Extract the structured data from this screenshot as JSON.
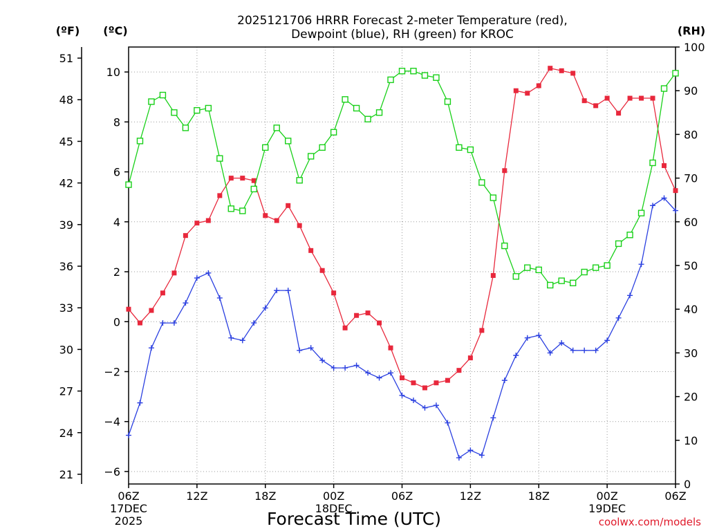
{
  "chart_data": {
    "type": "line",
    "title": [
      "2025121706 HRRR Forecast 2-meter Temperature (red),",
      "Dewpoint (blue), RH (green) for KROC"
    ],
    "xlabel": "Forecast Time (UTC)",
    "credit": "coolwx.com/models",
    "units": {
      "fahrenheit": "(ºF)",
      "celsius": "(ºC)",
      "rh": "(RH)"
    },
    "x_hours": [
      0,
      1,
      2,
      3,
      4,
      5,
      6,
      7,
      8,
      9,
      10,
      11,
      12,
      13,
      14,
      15,
      16,
      17,
      18,
      19,
      20,
      21,
      22,
      23,
      24,
      25,
      26,
      27,
      28,
      29,
      30,
      31,
      32,
      33,
      34,
      35,
      36,
      37,
      38,
      39,
      40,
      41,
      42,
      43,
      44,
      45,
      46,
      47,
      48
    ],
    "x_range": [
      0,
      48
    ],
    "x_ticks": [
      {
        "hour": 0,
        "lines": [
          "06Z",
          "17DEC",
          "2025"
        ]
      },
      {
        "hour": 6,
        "lines": [
          "12Z"
        ]
      },
      {
        "hour": 12,
        "lines": [
          "18Z"
        ]
      },
      {
        "hour": 18,
        "lines": [
          "00Z",
          "18DEC"
        ]
      },
      {
        "hour": 24,
        "lines": [
          "06Z"
        ]
      },
      {
        "hour": 30,
        "lines": [
          "12Z"
        ]
      },
      {
        "hour": 36,
        "lines": [
          "18Z"
        ]
      },
      {
        "hour": 42,
        "lines": [
          "00Z",
          "19DEC"
        ]
      },
      {
        "hour": 48,
        "lines": [
          "06Z"
        ]
      }
    ],
    "celsius_axis": {
      "range": [
        -6.5,
        11.0
      ],
      "ticks": [
        "10",
        "8",
        "6",
        "4",
        "2",
        "0",
        "−2",
        "−4",
        "−6"
      ],
      "tick_values": [
        10,
        8,
        6,
        4,
        2,
        0,
        -2,
        -4,
        -6
      ]
    },
    "fahrenheit_axis": {
      "ticks": [
        "51",
        "48",
        "45",
        "42",
        "39",
        "36",
        "33",
        "30",
        "27",
        "24",
        "21"
      ],
      "tick_values": [
        51,
        48,
        45,
        42,
        39,
        36,
        33,
        30,
        27,
        24,
        21
      ]
    },
    "rh_axis": {
      "range": [
        0,
        100
      ],
      "ticks": [
        "100",
        "90",
        "80",
        "70",
        "60",
        "50",
        "40",
        "30",
        "20",
        "10",
        "0"
      ],
      "tick_values": [
        100,
        90,
        80,
        70,
        60,
        50,
        40,
        30,
        20,
        10,
        0
      ]
    },
    "series": [
      {
        "name": "Temperature",
        "axis": "celsius",
        "color": "#e8283c",
        "marker": "filled-square",
        "values": [
          0.5,
          -0.05,
          0.45,
          1.15,
          1.95,
          3.45,
          3.95,
          4.05,
          5.05,
          5.75,
          5.75,
          5.65,
          4.25,
          4.05,
          4.65,
          3.85,
          2.85,
          2.05,
          1.15,
          -0.25,
          0.25,
          0.35,
          -0.05,
          -1.05,
          -2.25,
          -2.45,
          -2.65,
          -2.45,
          -2.35,
          -1.95,
          -1.45,
          -0.35,
          1.85,
          6.05,
          9.25,
          9.15,
          9.45,
          10.15,
          10.05,
          9.95,
          8.85,
          8.65,
          8.95,
          8.35,
          8.95,
          8.95,
          8.95,
          6.25,
          5.25
        ]
      },
      {
        "name": "Dewpoint",
        "axis": "celsius",
        "color": "#2a3fe0",
        "marker": "plus",
        "values": [
          -4.55,
          -3.25,
          -1.05,
          -0.05,
          -0.05,
          0.75,
          1.75,
          1.95,
          0.95,
          -0.65,
          -0.75,
          -0.05,
          0.55,
          1.25,
          1.25,
          -1.15,
          -1.05,
          -1.55,
          -1.85,
          -1.85,
          -1.75,
          -2.05,
          -2.25,
          -2.05,
          -2.95,
          -3.15,
          -3.45,
          -3.35,
          -4.05,
          -5.45,
          -5.15,
          -5.35,
          -3.85,
          -2.35,
          -1.35,
          -0.65,
          -0.55,
          -1.25,
          -0.85,
          -1.15,
          -1.15,
          -1.15,
          -0.75,
          0.15,
          1.05,
          2.3,
          4.65,
          4.95,
          4.45
        ]
      },
      {
        "name": "RH",
        "axis": "rh",
        "color": "#18d018",
        "marker": "open-square",
        "values": [
          68.5,
          78.5,
          87.5,
          89,
          85,
          81.5,
          85.5,
          86,
          74.5,
          63,
          62.5,
          67.5,
          77,
          81.5,
          78.5,
          69.5,
          75,
          77,
          80.5,
          88,
          86,
          83.5,
          85,
          92.5,
          94.5,
          94.5,
          93.5,
          93,
          87.5,
          77,
          76.5,
          69,
          65.5,
          54.5,
          47.5,
          49.5,
          49,
          45.5,
          46.5,
          46,
          48.5,
          49.5,
          50,
          55,
          57,
          62,
          73.5,
          90.5,
          94
        ]
      }
    ]
  }
}
